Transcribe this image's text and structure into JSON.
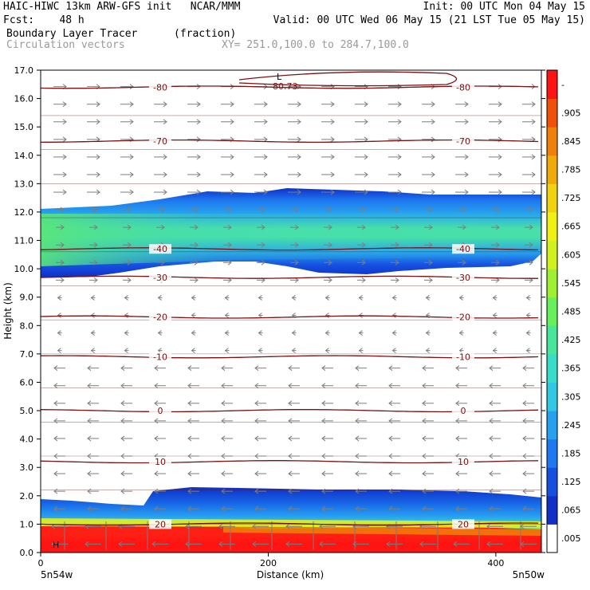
{
  "header": {
    "line1_left": "HAIC-HIWC 13km ARW-GFS init   NCAR/MMM",
    "line1_right": "Init: 00 UTC Mon 04 May 15",
    "line2_left": "Fcst:    48 h",
    "line2_right": "Valid: 00 UTC Wed 06 May 15 (21 LST Tue 05 May 15)",
    "line3_left": "Boundary Layer Tracer",
    "line3_mid": "(fraction)",
    "line4_left": "Circulation vectors",
    "line4_mid": "XY= 251.0,100.0 to 284.7,100.0"
  },
  "chart_data": {
    "type": "heatmap",
    "xlabel": "Distance (km)",
    "ylabel": "Height (km)",
    "xlim": [
      0,
      440
    ],
    "ylim": [
      0,
      17
    ],
    "x_ticks": [
      "0",
      "200",
      "400"
    ],
    "x_tick_values": [
      0,
      200,
      400
    ],
    "y_ticks": [
      "0.0",
      "1.0",
      "2.0",
      "3.0",
      "4.0",
      "5.0",
      "6.0",
      "7.0",
      "8.0",
      "9.0",
      "10.0",
      "11.0",
      "12.0",
      "13.0",
      "14.0",
      "15.0",
      "16.0",
      "17.0"
    ],
    "endpoint_labels": {
      "left": "5n54w",
      "right": "5n50w"
    },
    "colorbar": {
      "labels": [
        ".005",
        ".065",
        ".125",
        ".185",
        ".245",
        ".305",
        ".365",
        ".425",
        ".485",
        ".545",
        ".605",
        ".665",
        ".725",
        ".785",
        ".845",
        ".905",
        "-"
      ],
      "colors": [
        "#ffffff",
        "#1030c8",
        "#1650e0",
        "#1e78f0",
        "#28a0f0",
        "#30c8e6",
        "#38dcc8",
        "#48e69a",
        "#66f05a",
        "#a0f032",
        "#d2f01e",
        "#f0f014",
        "#f0d20e",
        "#f0aa0a",
        "#f0800a",
        "#f0500a",
        "#ff1414"
      ]
    },
    "layers": [
      {
        "name": "upper tracer layer",
        "base_km": 9.6,
        "top_km": 12.8,
        "max_fraction": 0.43
      },
      {
        "name": "boundary layer",
        "base_km": 0.0,
        "top_km": 2.3,
        "max_fraction": 1.0
      }
    ],
    "contour_field": "temperature (°C)",
    "contours": [
      {
        "label": "-80",
        "height_km": 16.4
      },
      {
        "label": "-70",
        "height_km": 14.5
      },
      {
        "label": "-40",
        "height_km": 10.7
      },
      {
        "label": "-30",
        "height_km": 9.7
      },
      {
        "label": "-20",
        "height_km": 8.3
      },
      {
        "label": "-10",
        "height_km": 6.9
      },
      {
        "label": "0",
        "height_km": 5.0
      },
      {
        "label": "10",
        "height_km": 3.2
      },
      {
        "label": "20",
        "height_km": 1.0
      }
    ],
    "extra_labels": {
      "low_marker": "L",
      "low_value": "-80.73",
      "high_marker": "H"
    }
  }
}
